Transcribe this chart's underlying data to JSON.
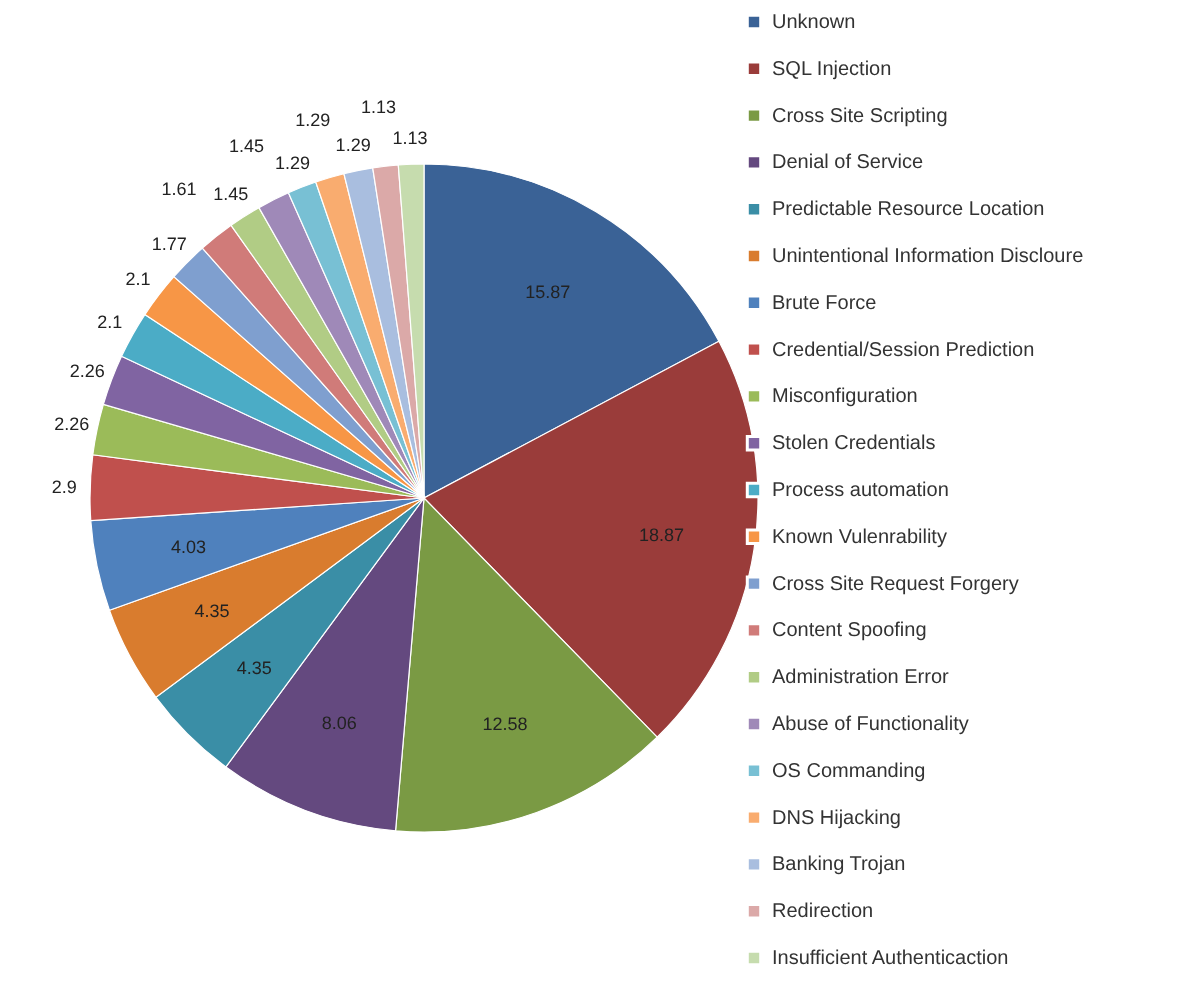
{
  "chart_data": {
    "type": "pie",
    "categories": [
      "Unknown",
      "SQL Injection",
      "Cross Site Scripting",
      "Denial of Service",
      "Predictable Resource Location",
      "Unintentional Information Discloure",
      "Brute Force",
      "Credential/Session Prediction",
      "Misconfiguration",
      "Stolen Credentials",
      "Process automation",
      "Known Vulenrability",
      "Cross Site Request Forgery",
      "Content Spoofing",
      "Administration Error",
      "Abuse of Functionality",
      "OS Commanding",
      "DNS Hijacking",
      "Banking Trojan",
      "Redirection",
      "Insufficient Authenticaction"
    ],
    "values": [
      15.87,
      18.87,
      12.58,
      8.06,
      4.35,
      4.35,
      4.03,
      2.9,
      2.26,
      2.26,
      2.1,
      2.1,
      1.77,
      1.61,
      1.45,
      1.45,
      1.29,
      1.29,
      1.29,
      1.13,
      1.13
    ],
    "colors": [
      "#3a6296",
      "#9a3c3a",
      "#7a9a44",
      "#64497f",
      "#3a8ea6",
      "#d97c2e",
      "#4f81bd",
      "#c0504d",
      "#9bbb59",
      "#8064a2",
      "#4bacc6",
      "#f79646",
      "#7f9fcf",
      "#d07b79",
      "#b1cc85",
      "#9f89b8",
      "#78c0d4",
      "#f9ac6f",
      "#a9bedf",
      "#dba9a8",
      "#c6dcae"
    ],
    "data_labels": true,
    "legend": "right"
  }
}
